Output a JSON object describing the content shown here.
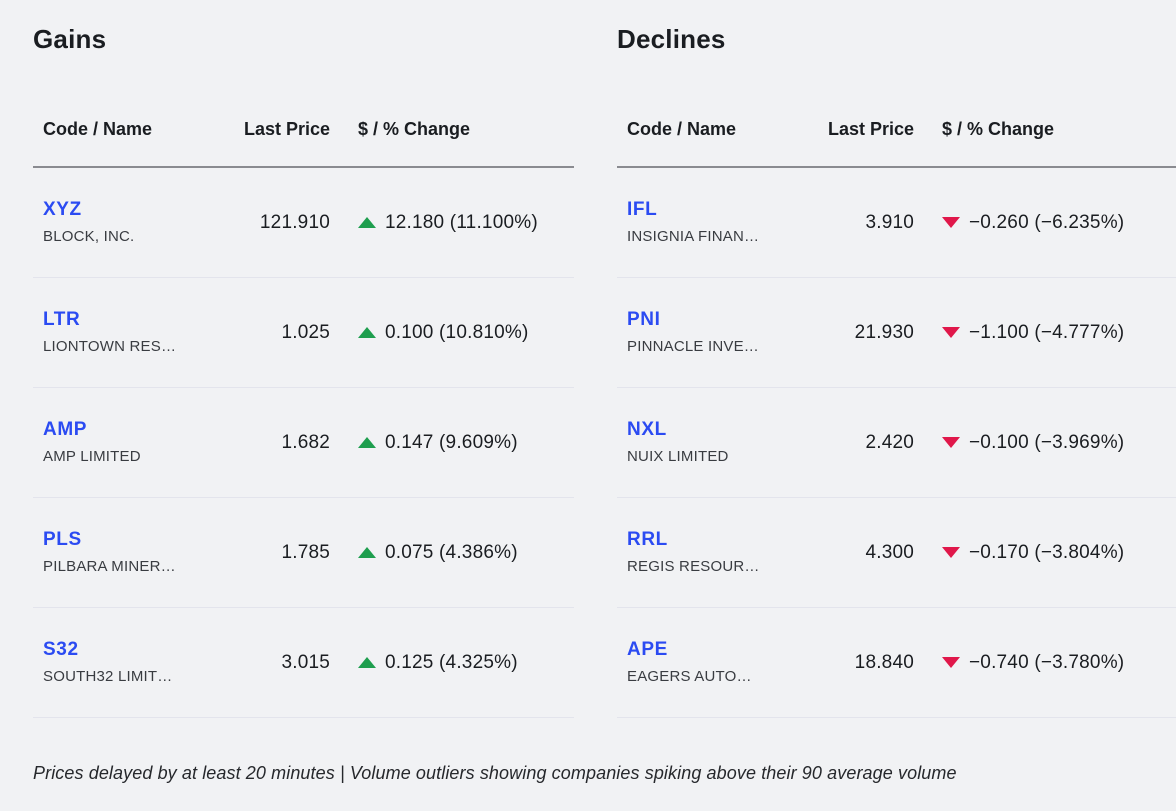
{
  "colors": {
    "background": "#f1f2f4",
    "ticker_blue": "#2b4bf2",
    "gain_green": "#1e9e4e",
    "decline_red": "#e0174a",
    "text": "#1a1d21"
  },
  "icons": {
    "up": "triangle-up-icon",
    "down": "triangle-down-icon"
  },
  "tables": {
    "gains": {
      "title": "Gains",
      "headers": {
        "code_name": "Code / Name",
        "last_price": "Last Price",
        "change": "$ / % Change"
      },
      "rows": [
        {
          "code": "XYZ",
          "name": "BLOCK, INC.",
          "last_price": "121.910",
          "change": "12.180 (11.100%)",
          "direction": "up"
        },
        {
          "code": "LTR",
          "name": "LIONTOWN RES…",
          "last_price": "1.025",
          "change": "0.100 (10.810%)",
          "direction": "up"
        },
        {
          "code": "AMP",
          "name": "AMP LIMITED",
          "last_price": "1.682",
          "change": "0.147 (9.609%)",
          "direction": "up"
        },
        {
          "code": "PLS",
          "name": "PILBARA MINER…",
          "last_price": "1.785",
          "change": "0.075 (4.386%)",
          "direction": "up"
        },
        {
          "code": "S32",
          "name": "SOUTH32 LIMIT…",
          "last_price": "3.015",
          "change": "0.125 (4.325%)",
          "direction": "up"
        }
      ]
    },
    "declines": {
      "title": "Declines",
      "headers": {
        "code_name": "Code / Name",
        "last_price": "Last Price",
        "change": "$ / % Change"
      },
      "rows": [
        {
          "code": "IFL",
          "name": "INSIGNIA FINAN…",
          "last_price": "3.910",
          "change": "−0.260 (−6.235%)",
          "direction": "down"
        },
        {
          "code": "PNI",
          "name": "PINNACLE INVE…",
          "last_price": "21.930",
          "change": "−1.100 (−4.777%)",
          "direction": "down"
        },
        {
          "code": "NXL",
          "name": "NUIX LIMITED",
          "last_price": "2.420",
          "change": "−0.100 (−3.969%)",
          "direction": "down"
        },
        {
          "code": "RRL",
          "name": "REGIS RESOUR…",
          "last_price": "4.300",
          "change": "−0.170 (−3.804%)",
          "direction": "down"
        },
        {
          "code": "APE",
          "name": "EAGERS AUTO…",
          "last_price": "18.840",
          "change": "−0.740 (−3.780%)",
          "direction": "down"
        }
      ]
    }
  },
  "footer": {
    "text": "Prices delayed by at least 20 minutes | Volume outliers showing companies spiking above their 90 average volume"
  }
}
